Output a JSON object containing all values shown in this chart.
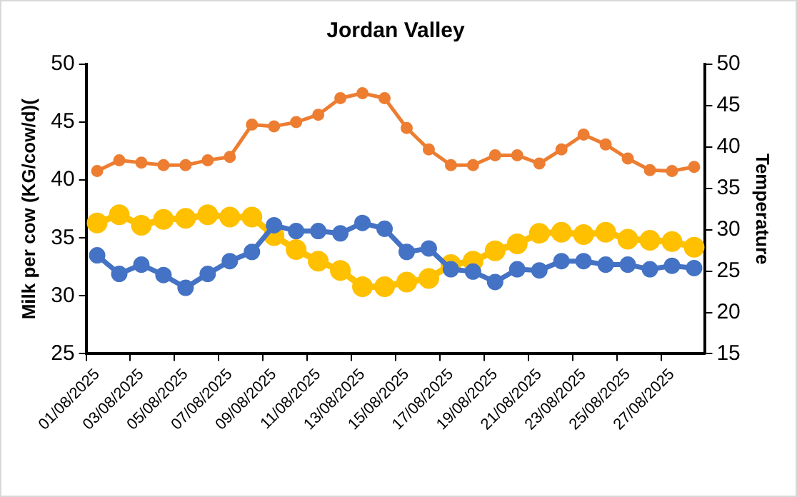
{
  "chart_data": {
    "type": "line",
    "title": "Jordan Valley",
    "ylabel": "Milk per cow (KG/cow/d)(",
    "y2label": "Temperature",
    "categories": [
      "01/08/2025",
      null,
      "03/08/2025",
      null,
      "05/08/2025",
      null,
      "07/08/2025",
      null,
      "09/08/2025",
      null,
      "11/08/2025",
      null,
      "13/08/2025",
      null,
      "15/08/2025",
      null,
      "17/08/2025",
      null,
      "19/08/2025",
      null,
      "21/08/2025",
      null,
      "23/08/2025",
      null,
      "25/08/2025",
      null,
      "27/08/2025",
      null
    ],
    "series": [
      {
        "color": "#ed7d31",
        "axis": "y2",
        "values": [
          37.1,
          38.4,
          38.1,
          37.8,
          37.8,
          38.4,
          38.8,
          42.7,
          42.5,
          43.0,
          43.9,
          45.9,
          46.5,
          45.9,
          42.3,
          39.7,
          37.8,
          37.8,
          39.0,
          39.0,
          38.0,
          39.7,
          41.5,
          40.3,
          38.6,
          37.2,
          37.1,
          37.6
        ]
      },
      {
        "color": "#4472c4",
        "values": [
          33.5,
          31.9,
          32.7,
          31.8,
          30.7,
          31.9,
          33.0,
          33.8,
          36.1,
          35.6,
          35.6,
          35.4,
          36.3,
          35.8,
          33.8,
          34.1,
          32.3,
          32.1,
          31.2,
          32.3,
          32.2,
          33.0,
          33.0,
          32.7,
          32.7,
          32.3,
          32.6,
          32.4
        ]
      },
      {
        "color": "#ffc000",
        "values": [
          36.3,
          37.0,
          36.1,
          36.6,
          36.7,
          37.0,
          36.8,
          36.8,
          35.2,
          34.0,
          33.0,
          32.2,
          30.8,
          30.8,
          31.2,
          31.5,
          32.7,
          33.0,
          33.9,
          34.5,
          35.4,
          35.5,
          35.3,
          35.5,
          34.9,
          34.8,
          34.7,
          34.2
        ]
      }
    ],
    "ylim": [
      25,
      50
    ],
    "yticks": [
      25,
      30,
      35,
      40,
      45,
      50
    ],
    "y2lim": [
      15,
      50
    ],
    "y2ticks": [
      15,
      20,
      25,
      30,
      35,
      40,
      45,
      50
    ],
    "marker": "circle",
    "line_style": "solid",
    "grid": false,
    "legend": false
  }
}
